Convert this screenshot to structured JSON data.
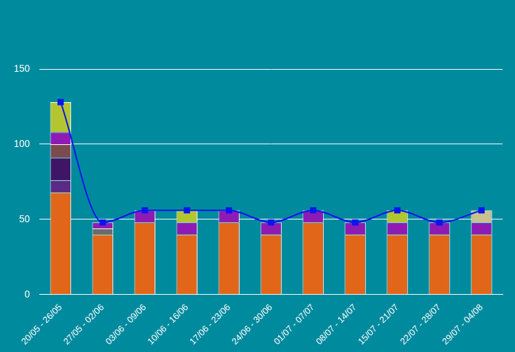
{
  "chart_data": {
    "type": "bar",
    "stacked": true,
    "grid": true,
    "categories": [
      "20/05 - 26/05",
      "27/05 - 02/06",
      "03/06 - 09/06",
      "10/06 - 16/06",
      "17/06 - 23/06",
      "24/06 - 30/06",
      "01/07 - 07/07",
      "08/07 - 14/07",
      "15/07 - 21/07",
      "22/07 - 28/07",
      "29/07 - 04/08"
    ],
    "ylim": [
      0,
      150
    ],
    "yticks": [
      0,
      50,
      100,
      150
    ],
    "series": [
      {
        "color": "#e2661a",
        "values": [
          68,
          40,
          48,
          40,
          48,
          40,
          48,
          40,
          40,
          40,
          40
        ]
      },
      {
        "color": "#5b2a86",
        "values": [
          8,
          null,
          null,
          null,
          null,
          null,
          null,
          null,
          null,
          null,
          null
        ]
      },
      {
        "color": "#3f1565",
        "values": [
          15,
          null,
          null,
          null,
          null,
          null,
          null,
          null,
          null,
          null,
          null
        ]
      },
      {
        "color": "#7c4b4f",
        "values": [
          9,
          null,
          null,
          null,
          null,
          null,
          null,
          null,
          null,
          null,
          null
        ]
      },
      {
        "color": "#6b6b6b",
        "values": [
          null,
          4,
          null,
          null,
          null,
          null,
          null,
          null,
          null,
          null,
          null
        ]
      },
      {
        "color": "#8e1cb4",
        "values": [
          8,
          4,
          8,
          8,
          8,
          8,
          8,
          8,
          8,
          8,
          8
        ]
      },
      {
        "color": "#b3c631",
        "values": [
          20,
          null,
          null,
          8,
          null,
          null,
          null,
          null,
          8,
          null,
          null
        ]
      },
      {
        "color": "#c8c28f",
        "values": [
          null,
          null,
          null,
          null,
          null,
          null,
          null,
          null,
          null,
          null,
          8
        ]
      },
      {
        "type": "line",
        "color": "#0a14f0",
        "marker": "square",
        "line_style": "solid",
        "values": [
          128,
          48,
          56,
          56,
          56,
          48,
          56,
          48,
          56,
          48,
          56
        ]
      }
    ]
  }
}
